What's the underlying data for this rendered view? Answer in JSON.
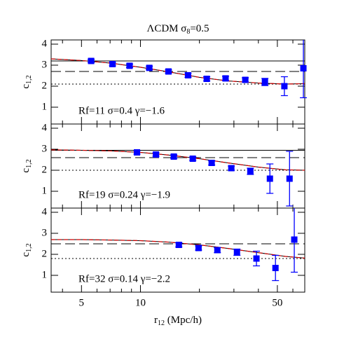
{
  "chart_data": [
    {
      "type": "scatter",
      "title": [
        "ΛCDM  σ",
        "8",
        "=0.5"
      ],
      "ylabel": [
        "c",
        "1,2"
      ],
      "xlim": [
        3.5,
        69
      ],
      "ylim": [
        0.2,
        4.2
      ],
      "log_x": true,
      "xticks": [
        5,
        10,
        50
      ],
      "xminor": [
        4,
        6,
        7,
        8,
        9,
        20,
        30,
        40,
        60
      ],
      "yticks": [
        1,
        2,
        3,
        4
      ],
      "points": {
        "color": "#0000ff",
        "x": [
          5.6,
          7.2,
          8.8,
          11.1,
          13.9,
          17.5,
          21.8,
          27.2,
          34.3,
          43.2,
          54.3,
          67.9
        ],
        "values": [
          3.2,
          3.05,
          2.97,
          2.87,
          2.7,
          2.52,
          2.35,
          2.37,
          2.3,
          2.2,
          2.0,
          2.85
        ],
        "errors": [
          0.08,
          0.08,
          0.08,
          0.08,
          0.08,
          0.1,
          0.1,
          0.1,
          0.1,
          0.17,
          0.45,
          1.4
        ]
      },
      "model": {
        "color": "#cc0000",
        "x": [
          3.5,
          5,
          7,
          10,
          14,
          20,
          28,
          40,
          55,
          69
        ],
        "values": [
          3.3,
          3.22,
          3.1,
          2.9,
          2.68,
          2.42,
          2.25,
          2.15,
          2.1,
          2.12
        ]
      },
      "hlines": [
        {
          "value": 3.2,
          "style": "solid"
        },
        {
          "value": 2.7,
          "style": "dashed"
        },
        {
          "value": 2.1,
          "style": "dotted"
        }
      ],
      "annotation": "Rf=11  σ=0.4  γ=−1.6"
    },
    {
      "type": "scatter",
      "ylabel": [
        "c",
        "1,2"
      ],
      "xlim": [
        3.5,
        69
      ],
      "ylim": [
        0.2,
        4.2
      ],
      "log_x": true,
      "xticks": [
        5,
        10,
        50
      ],
      "xminor": [
        4,
        6,
        7,
        8,
        9,
        20,
        30,
        40,
        60
      ],
      "yticks": [
        1,
        2,
        3,
        4
      ],
      "points": {
        "color": "#0000ff",
        "x": [
          9.6,
          12.0,
          14.8,
          18.5,
          23.1,
          29.1,
          36.4,
          45.8,
          57.7
        ],
        "values": [
          2.85,
          2.75,
          2.65,
          2.55,
          2.35,
          2.1,
          1.95,
          1.6,
          1.6
        ],
        "errors": [
          0.08,
          0.08,
          0.08,
          0.08,
          0.1,
          0.1,
          0.15,
          0.7,
          1.3
        ]
      },
      "model": {
        "color": "#cc0000",
        "x": [
          3.5,
          5,
          7,
          10,
          14,
          20,
          28,
          40,
          55,
          69
        ],
        "values": [
          2.97,
          2.95,
          2.92,
          2.85,
          2.72,
          2.55,
          2.35,
          2.15,
          2.02,
          2.0
        ]
      },
      "hlines": [
        {
          "value": 2.95,
          "style": "solid"
        },
        {
          "value": 2.6,
          "style": "dashed"
        },
        {
          "value": 2.0,
          "style": "dotted"
        }
      ],
      "annotation": "Rf=19  σ=0.24  γ=−1.9"
    },
    {
      "type": "scatter",
      "ylabel": [
        "c",
        "1,2"
      ],
      "xlabel": [
        "r",
        "12",
        " (Mpc/h)"
      ],
      "xlim": [
        3.5,
        69
      ],
      "ylim": [
        0.2,
        4.2
      ],
      "log_x": true,
      "xticks": [
        5,
        10,
        50
      ],
      "xminor": [
        4,
        6,
        7,
        8,
        9,
        20,
        30,
        40,
        60
      ],
      "yticks": [
        1,
        2,
        3,
        4
      ],
      "points": {
        "color": "#0000ff",
        "x": [
          15.7,
          19.8,
          24.7,
          31.1,
          39.1,
          48.9,
          61.0
        ],
        "values": [
          2.45,
          2.3,
          2.2,
          2.1,
          1.8,
          1.35,
          2.7
        ],
        "errors": [
          0.1,
          0.1,
          0.12,
          0.15,
          0.35,
          0.6,
          1.55
        ]
      },
      "model": {
        "color": "#cc0000",
        "x": [
          3.5,
          5,
          7,
          10,
          14,
          20,
          28,
          40,
          55,
          69
        ],
        "values": [
          2.7,
          2.7,
          2.68,
          2.65,
          2.58,
          2.45,
          2.28,
          2.08,
          1.9,
          1.82
        ]
      },
      "hlines": [
        {
          "value": 2.5,
          "style": "dashed"
        },
        {
          "value": 1.8,
          "style": "dotted"
        }
      ],
      "annotation": "Rf=32  σ=0.14  γ=−2.2"
    }
  ]
}
